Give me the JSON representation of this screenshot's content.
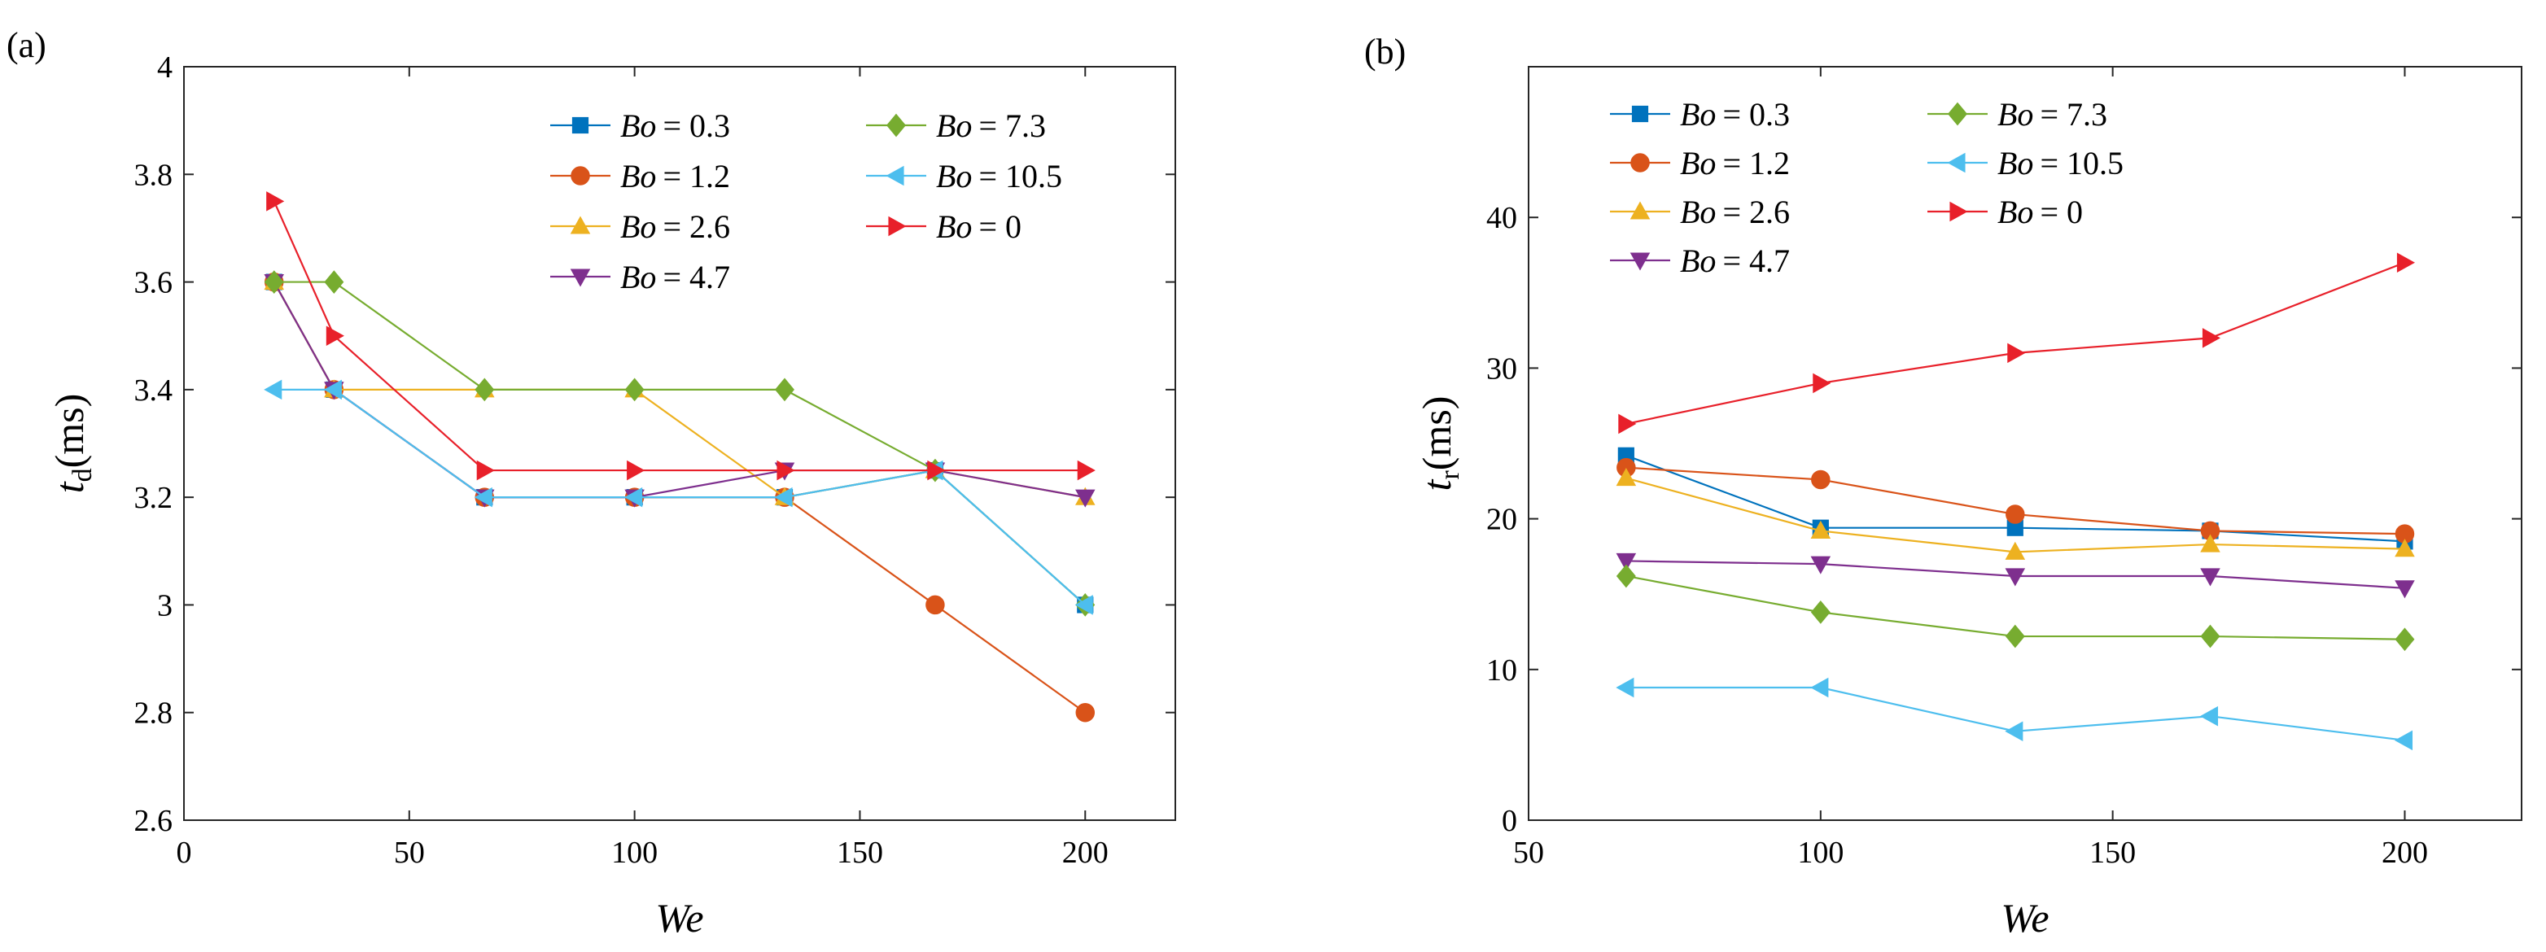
{
  "chart_data": [
    {
      "panel_label": "(a)",
      "type": "line",
      "ylabel_main": "t",
      "ylabel_sub": "d",
      "ylabel_unit": "(ms)",
      "xlabel": "We",
      "xlim": [
        0,
        220
      ],
      "ylim": [
        2.6,
        4.0
      ],
      "xticks": [
        0,
        50,
        100,
        150,
        200
      ],
      "xtick_labels": [
        "0",
        "50",
        "100",
        "150",
        "200"
      ],
      "yticks": [
        2.6,
        2.8,
        3.0,
        3.2,
        3.4,
        3.6,
        3.8,
        4.0
      ],
      "ytick_labels": [
        "2.6",
        "2.8",
        "3",
        "3.2",
        "3.4",
        "3.6",
        "3.8",
        "4"
      ],
      "legend_position": "top-right",
      "legend_columns": 2,
      "series": [
        {
          "name": "Bo = 0.3",
          "bo_sym": "Bo",
          "bo_val": "= 0.3",
          "color": "#0072BD",
          "marker": "square",
          "x": [
            20,
            33.3,
            66.7,
            100,
            133.3,
            166.7,
            200
          ],
          "y": [
            3.6,
            3.4,
            3.2,
            3.2,
            3.2,
            3.25,
            3.0
          ]
        },
        {
          "name": "Bo = 1.2",
          "bo_sym": "Bo",
          "bo_val": "= 1.2",
          "color": "#D95319",
          "marker": "circle",
          "x": [
            20,
            33.3,
            66.7,
            100,
            133.3,
            166.7,
            200
          ],
          "y": [
            3.6,
            3.4,
            3.2,
            3.2,
            3.2,
            3.0,
            2.8
          ]
        },
        {
          "name": "Bo = 2.6",
          "bo_sym": "Bo",
          "bo_val": "= 2.6",
          "color": "#EDB120",
          "marker": "triangle-up",
          "x": [
            20,
            33.3,
            66.7,
            100,
            133.3,
            166.7,
            200
          ],
          "y": [
            3.6,
            3.4,
            3.4,
            3.4,
            3.2,
            3.25,
            3.2
          ]
        },
        {
          "name": "Bo = 4.7",
          "bo_sym": "Bo",
          "bo_val": "= 4.7",
          "color": "#7E2F8E",
          "marker": "triangle-down",
          "x": [
            20,
            33.3,
            66.7,
            100,
            133.3,
            166.7,
            200
          ],
          "y": [
            3.6,
            3.4,
            3.2,
            3.2,
            3.25,
            3.25,
            3.2
          ]
        },
        {
          "name": "Bo = 7.3",
          "bo_sym": "Bo",
          "bo_val": "= 7.3",
          "color": "#77AC30",
          "marker": "diamond",
          "x": [
            20,
            33.3,
            66.7,
            100,
            133.3,
            166.7,
            200
          ],
          "y": [
            3.6,
            3.6,
            3.4,
            3.4,
            3.4,
            3.25,
            3.0
          ]
        },
        {
          "name": "Bo = 10.5",
          "bo_sym": "Bo",
          "bo_val": "= 10.5",
          "color": "#4DBEEE",
          "marker": "triangle-left",
          "x": [
            20,
            33.3,
            66.7,
            100,
            133.3,
            166.7,
            200
          ],
          "y": [
            3.4,
            3.4,
            3.2,
            3.2,
            3.2,
            3.25,
            3.0
          ]
        },
        {
          "name": "Bo = 0",
          "bo_sym": "Bo",
          "bo_val": "= 0",
          "color": "#E8202A",
          "marker": "triangle-right",
          "x": [
            20,
            33.3,
            66.7,
            100,
            133.3,
            166.7,
            200
          ],
          "y": [
            3.75,
            3.5,
            3.25,
            3.25,
            3.25,
            3.25,
            3.25
          ]
        }
      ]
    },
    {
      "panel_label": "(b)",
      "type": "line",
      "ylabel_main": "t",
      "ylabel_sub": "r",
      "ylabel_unit": "(ms)",
      "xlabel": "We",
      "xlim": [
        50,
        220
      ],
      "ylim": [
        0,
        50
      ],
      "xticks": [
        50,
        100,
        150,
        200
      ],
      "xtick_labels": [
        "50",
        "100",
        "150",
        "200"
      ],
      "yticks": [
        0,
        10,
        20,
        30,
        40
      ],
      "ytick_labels": [
        "0",
        "10",
        "20",
        "30",
        "40"
      ],
      "legend_position": "top-left",
      "legend_columns": 2,
      "series": [
        {
          "name": "Bo = 0.3",
          "bo_sym": "Bo",
          "bo_val": "= 0.3",
          "color": "#0072BD",
          "marker": "square",
          "x": [
            66.7,
            100,
            133.3,
            166.7,
            200
          ],
          "y": [
            24.2,
            19.4,
            19.4,
            19.2,
            18.5
          ]
        },
        {
          "name": "Bo = 1.2",
          "bo_sym": "Bo",
          "bo_val": "= 1.2",
          "color": "#D95319",
          "marker": "circle",
          "x": [
            66.7,
            100,
            133.3,
            166.7,
            200
          ],
          "y": [
            23.4,
            22.6,
            20.3,
            19.2,
            19.0
          ]
        },
        {
          "name": "Bo = 2.6",
          "bo_sym": "Bo",
          "bo_val": "= 2.6",
          "color": "#EDB120",
          "marker": "triangle-up",
          "x": [
            66.7,
            100,
            133.3,
            166.7,
            200
          ],
          "y": [
            22.7,
            19.2,
            17.8,
            18.3,
            18.0
          ]
        },
        {
          "name": "Bo = 4.7",
          "bo_sym": "Bo",
          "bo_val": "= 4.7",
          "color": "#7E2F8E",
          "marker": "triangle-down",
          "x": [
            66.7,
            100,
            133.3,
            166.7,
            200
          ],
          "y": [
            17.2,
            17.0,
            16.2,
            16.2,
            15.4
          ]
        },
        {
          "name": "Bo = 7.3",
          "bo_sym": "Bo",
          "bo_val": "= 7.3",
          "color": "#77AC30",
          "marker": "diamond",
          "x": [
            66.7,
            100,
            133.3,
            166.7,
            200
          ],
          "y": [
            16.2,
            13.8,
            12.2,
            12.2,
            12.0
          ]
        },
        {
          "name": "Bo = 10.5",
          "bo_sym": "Bo",
          "bo_val": "= 10.5",
          "color": "#4DBEEE",
          "marker": "triangle-left",
          "x": [
            66.7,
            100,
            133.3,
            166.7,
            200
          ],
          "y": [
            8.8,
            8.8,
            5.9,
            6.9,
            5.3
          ]
        },
        {
          "name": "Bo = 0",
          "bo_sym": "Bo",
          "bo_val": "= 0",
          "color": "#E8202A",
          "marker": "triangle-right",
          "x": [
            66.7,
            100,
            133.3,
            166.7,
            200
          ],
          "y": [
            26.3,
            29.0,
            31.0,
            32.0,
            37.0
          ]
        }
      ]
    }
  ]
}
